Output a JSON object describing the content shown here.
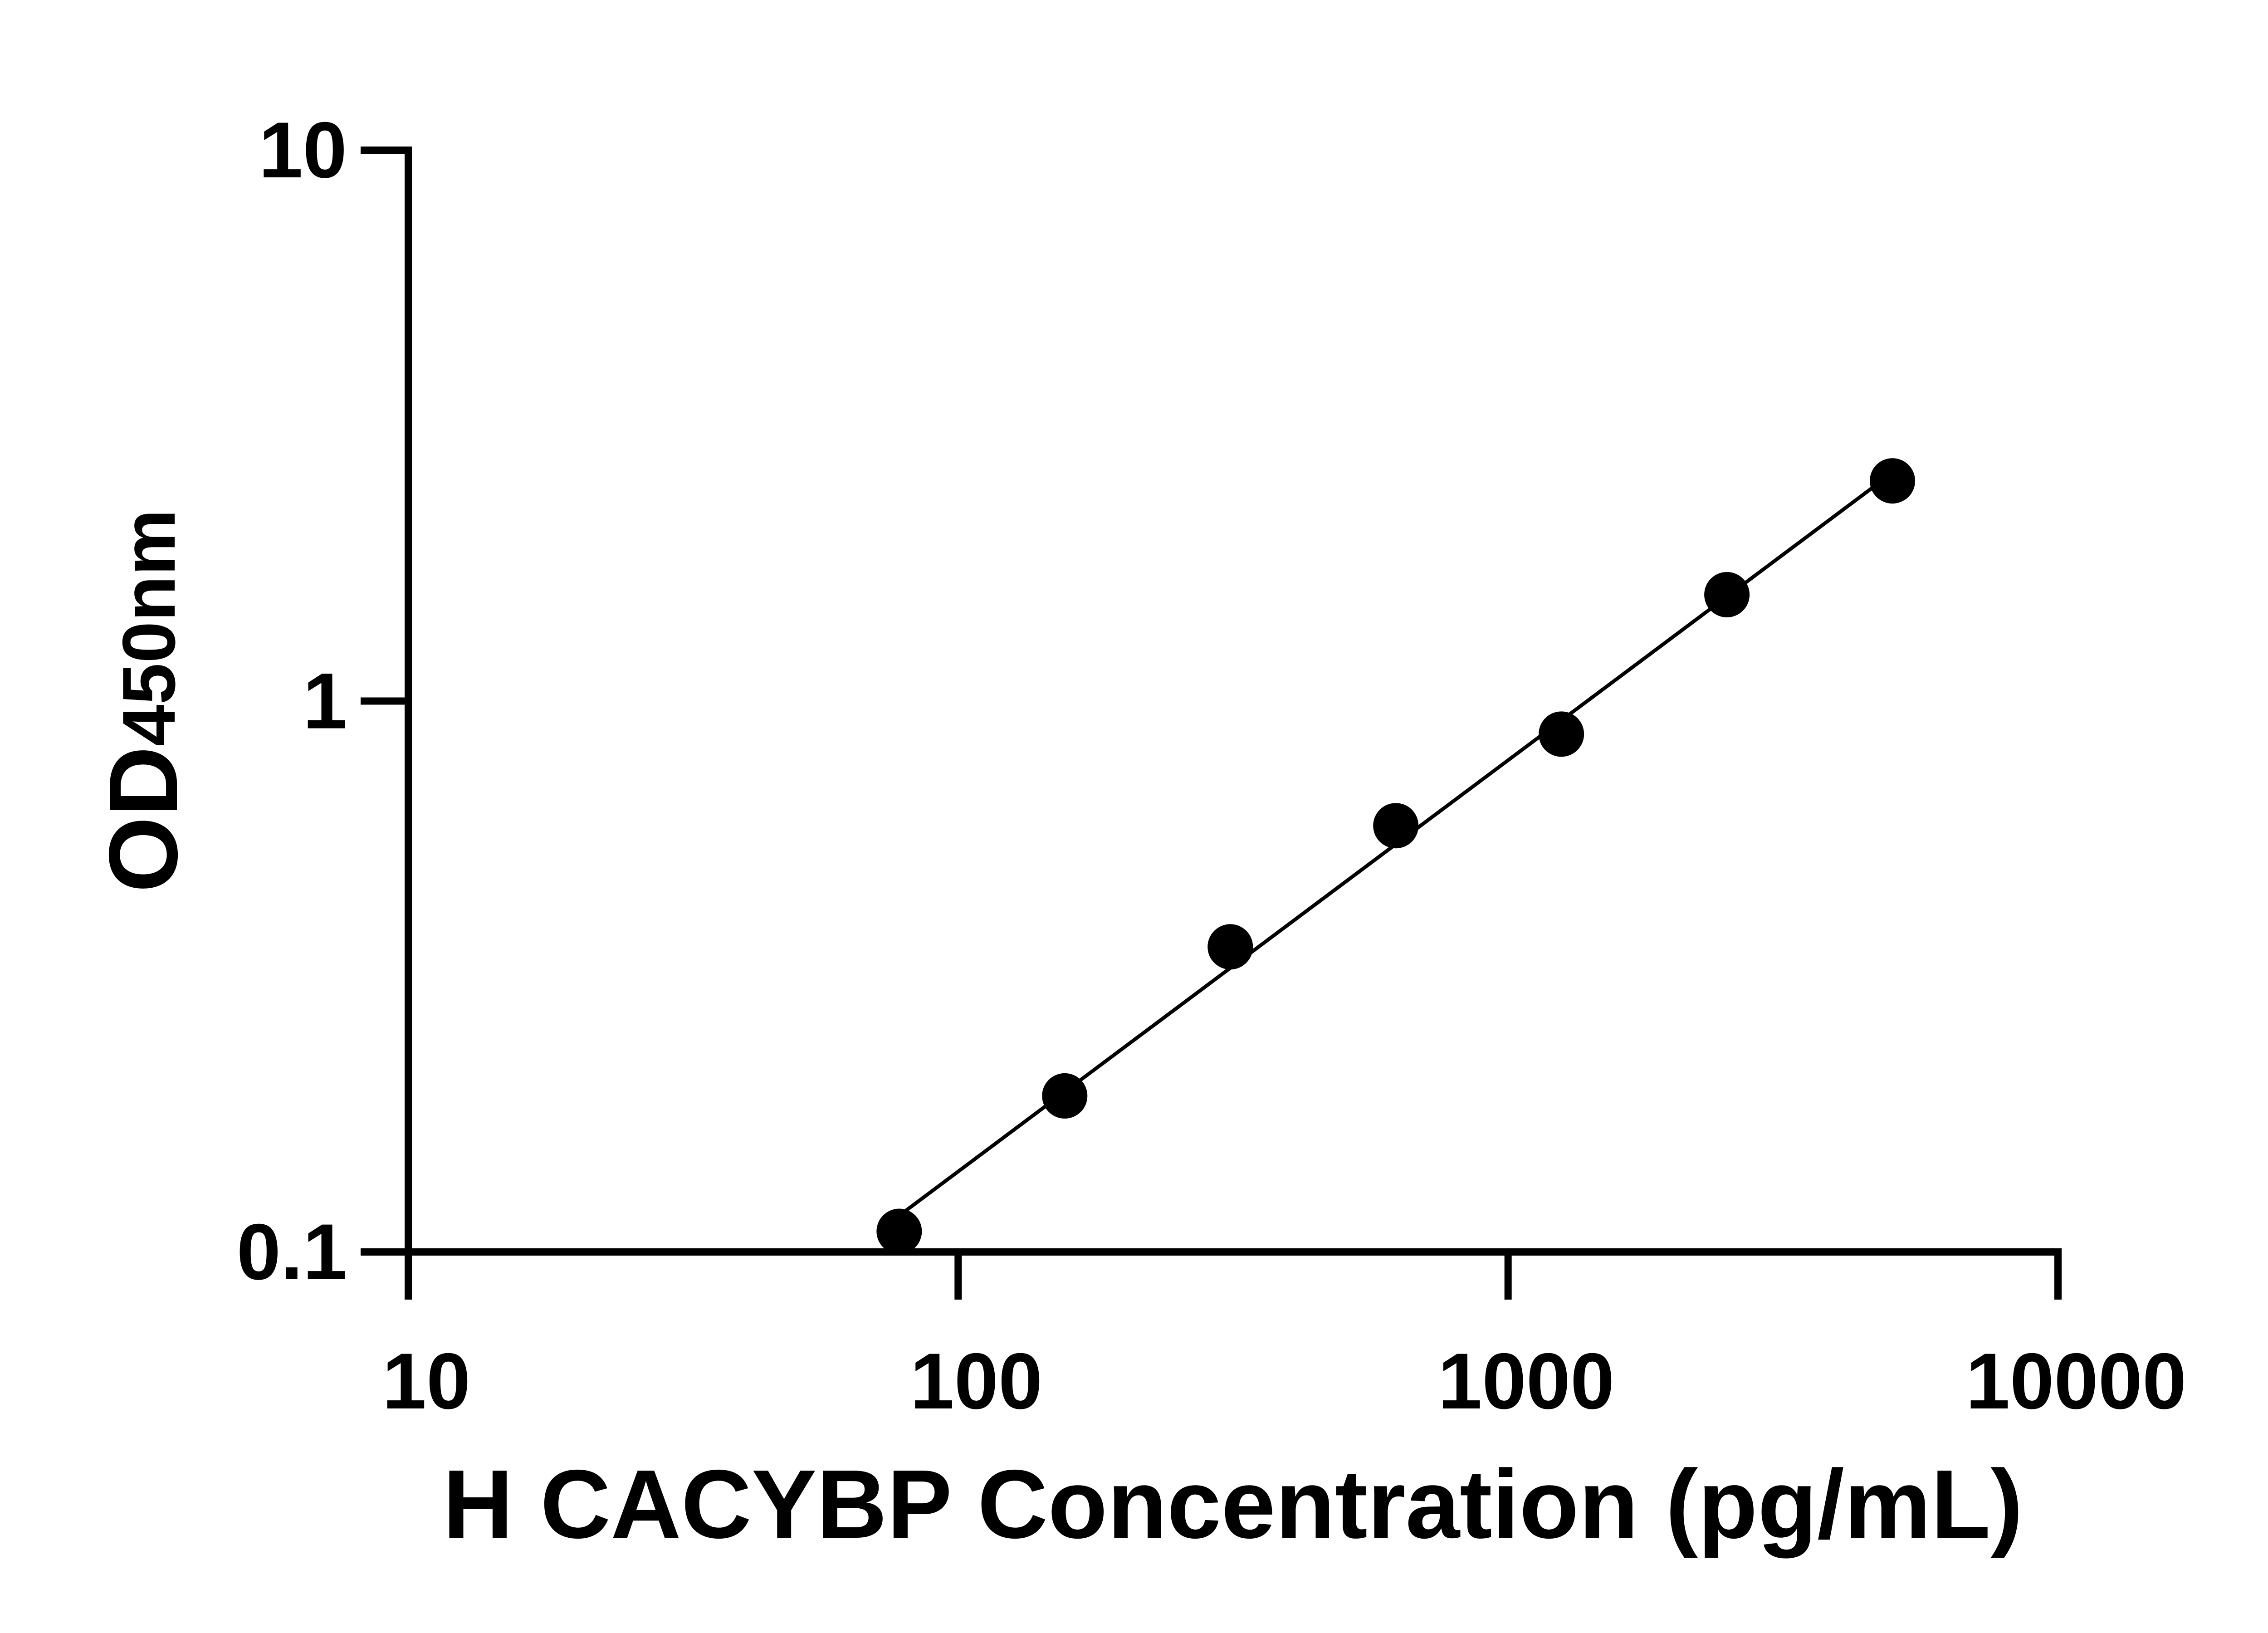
{
  "chart_data": {
    "type": "scatter",
    "title": "",
    "xlabel": "H CACYBP Concentration (pg/mL)",
    "ylabel": "OD450nm",
    "ylabel_parts": {
      "main": "OD",
      "sub": "450nm"
    },
    "x_scale": "log",
    "y_scale": "log",
    "xlim": [
      10,
      10000
    ],
    "ylim": [
      0.1,
      10
    ],
    "x_ticks": [
      10,
      100,
      1000,
      10000
    ],
    "x_tick_labels": [
      "10",
      "100",
      "1000",
      "10000"
    ],
    "y_ticks": [
      0.1,
      1,
      10
    ],
    "y_tick_labels": [
      "0.1",
      "1",
      "10"
    ],
    "grid": false,
    "legend": "none",
    "point_color": "#000000",
    "line_color": "#000000",
    "series": [
      {
        "x": [
          78.125,
          156.25,
          312.5,
          625,
          1250,
          2500,
          5000
        ],
        "y": [
          0.109,
          0.192,
          0.358,
          0.594,
          0.871,
          1.56,
          2.51
        ],
        "fit": "line"
      }
    ]
  }
}
